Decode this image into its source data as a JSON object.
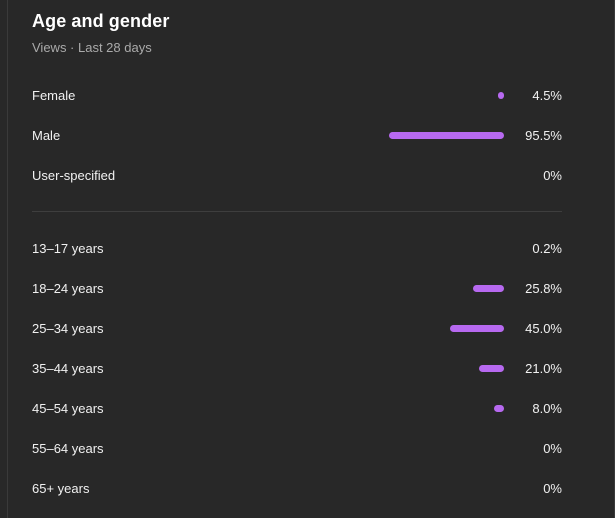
{
  "header": {
    "title": "Age and gender",
    "subtitle": "Views · Last 28 days"
  },
  "accent_color": "#b769f0",
  "gender": [
    {
      "label": "Female",
      "value": "4.5%",
      "percent": 4.5
    },
    {
      "label": "Male",
      "value": "95.5%",
      "percent": 95.5
    },
    {
      "label": "User-specified",
      "value": "0%",
      "percent": 0
    }
  ],
  "age": [
    {
      "label": "13–17 years",
      "value": "0.2%",
      "percent": 0.2
    },
    {
      "label": "18–24 years",
      "value": "25.8%",
      "percent": 25.8
    },
    {
      "label": "25–34 years",
      "value": "45.0%",
      "percent": 45.0
    },
    {
      "label": "35–44 years",
      "value": "21.0%",
      "percent": 21.0
    },
    {
      "label": "45–54 years",
      "value": "8.0%",
      "percent": 8.0
    },
    {
      "label": "55–64 years",
      "value": "0%",
      "percent": 0
    },
    {
      "label": "65+ years",
      "value": "0%",
      "percent": 0
    }
  ]
}
